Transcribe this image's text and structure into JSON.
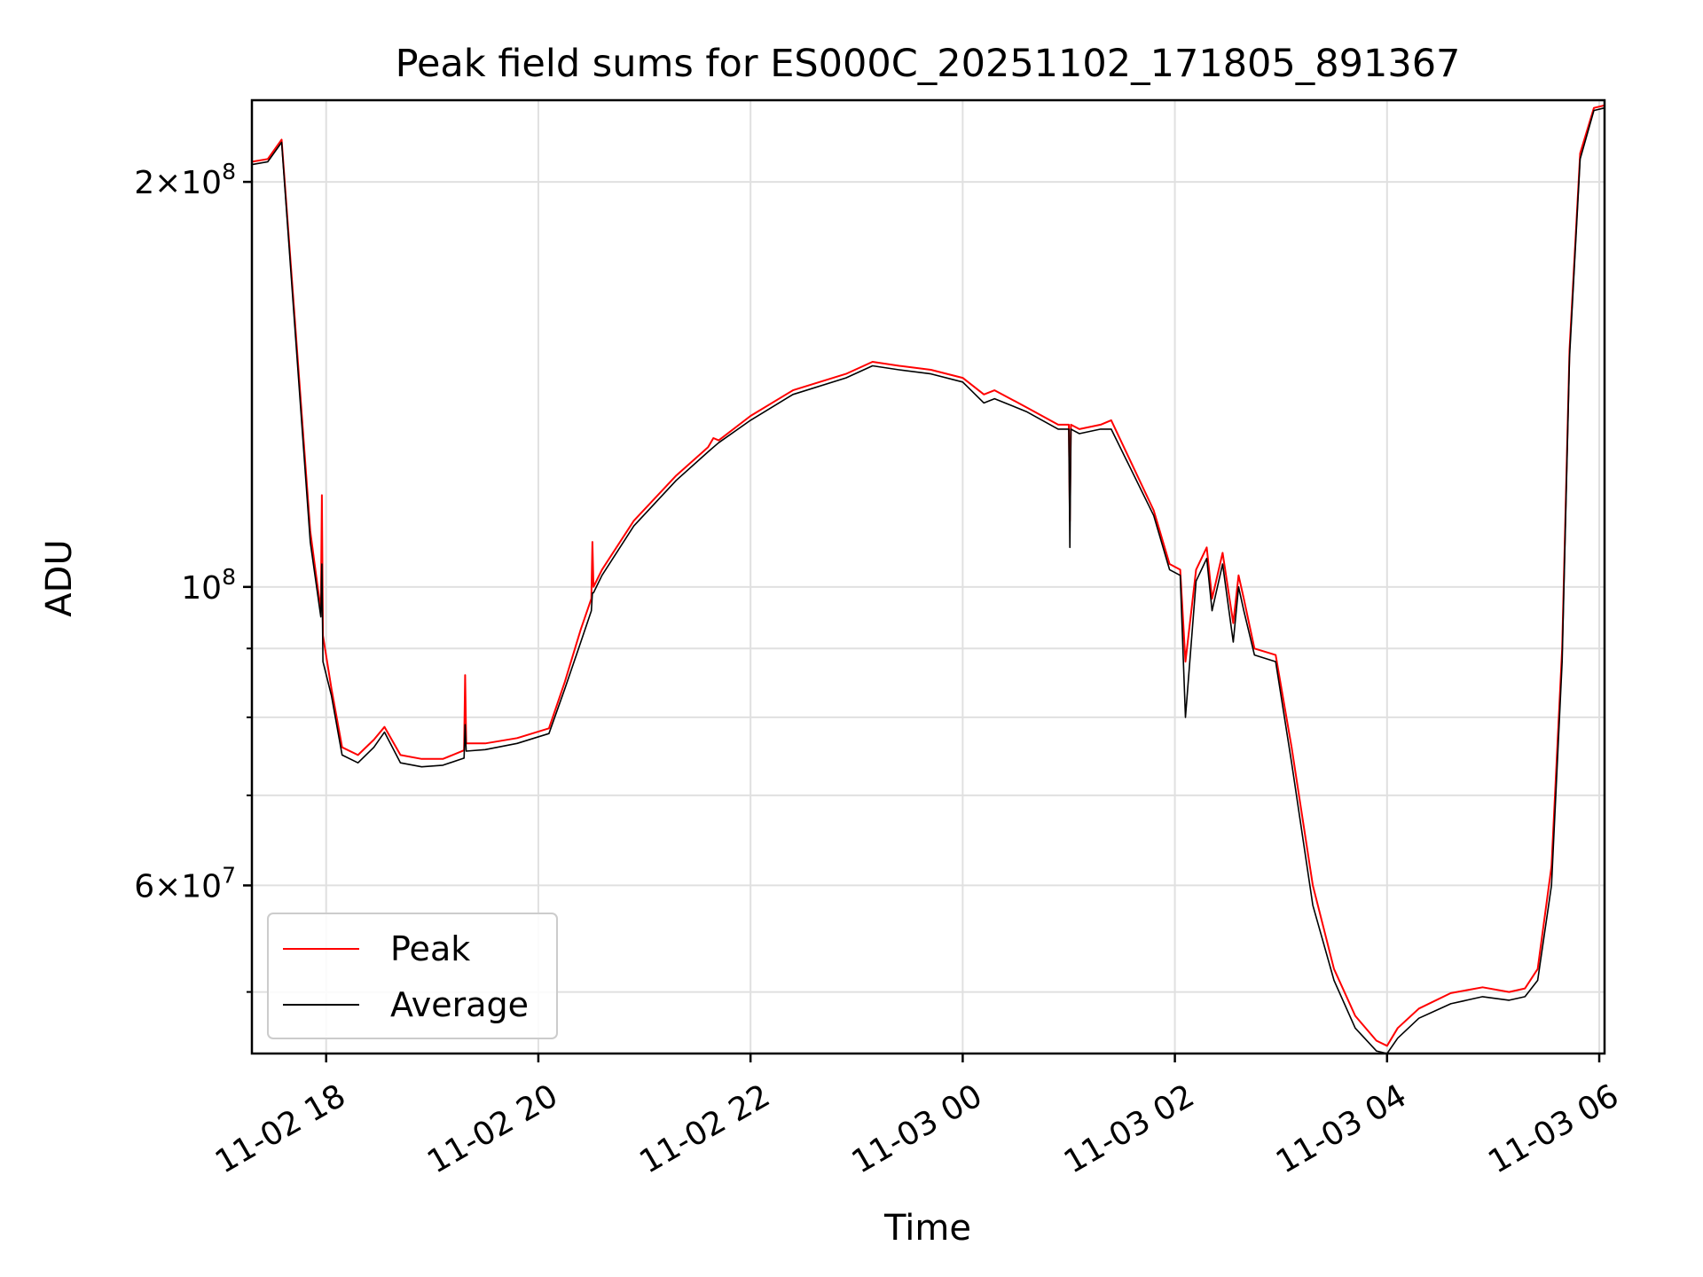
{
  "chart_data": {
    "type": "line",
    "title": "Peak field sums for ES000C_20251102_171805_891367",
    "xlabel": "Time",
    "ylabel": "ADU",
    "yscale": "log",
    "grid": true,
    "legend_position": "bottom-left",
    "xlim_hours": [
      17.3,
      30.05
    ],
    "ylim": [
      45000000,
      230000000
    ],
    "x_ticks": [
      {
        "hour": 18,
        "label": "11-02 18"
      },
      {
        "hour": 20,
        "label": "11-02 20"
      },
      {
        "hour": 22,
        "label": "11-02 22"
      },
      {
        "hour": 24,
        "label": "11-03 00"
      },
      {
        "hour": 26,
        "label": "11-03 02"
      },
      {
        "hour": 28,
        "label": "11-03 04"
      },
      {
        "hour": 30,
        "label": "11-03 06"
      }
    ],
    "y_major_ticks": [
      {
        "value": 200000000,
        "mant": "2",
        "base": "10",
        "exp": "8"
      },
      {
        "value": 100000000,
        "mant": "",
        "base": "10",
        "exp": "8"
      },
      {
        "value": 60000000,
        "mant": "6",
        "base": "10",
        "exp": "7"
      }
    ],
    "y_minor_ticks": [
      50000000,
      70000000,
      80000000,
      90000000
    ],
    "series": [
      {
        "name": "Peak",
        "color": "#ff0000",
        "x": [
          17.3,
          17.45,
          17.58,
          17.7,
          17.85,
          17.95,
          17.96,
          17.97,
          18.05,
          18.15,
          18.3,
          18.45,
          18.55,
          18.7,
          18.9,
          19.1,
          19.3,
          19.31,
          19.32,
          19.5,
          19.8,
          20.1,
          20.25,
          20.4,
          20.5,
          20.51,
          20.52,
          20.6,
          20.9,
          21.3,
          21.6,
          21.65,
          21.7,
          22.0,
          22.4,
          22.9,
          23.15,
          23.4,
          23.7,
          24.0,
          24.2,
          24.3,
          24.6,
          24.9,
          25.0,
          25.01,
          25.02,
          25.1,
          25.3,
          25.4,
          25.8,
          25.95,
          26.05,
          26.1,
          26.2,
          26.3,
          26.35,
          26.45,
          26.55,
          26.6,
          26.65,
          26.75,
          26.95,
          27.1,
          27.3,
          27.5,
          27.7,
          27.9,
          28.0,
          28.1,
          28.3,
          28.6,
          28.9,
          29.15,
          29.3,
          29.42,
          29.55,
          29.65,
          29.72,
          29.82,
          29.95,
          30.05
        ],
        "values": [
          207000000,
          208000000,
          215000000,
          160000000,
          110000000,
          96000000,
          117000000,
          92000000,
          84000000,
          76000000,
          75000000,
          77000000,
          78700000,
          75000000,
          74500000,
          74500000,
          75600000,
          86000000,
          76500000,
          76500000,
          77200000,
          78500000,
          85000000,
          93000000,
          98000000,
          108000000,
          100000000,
          103000000,
          112000000,
          121000000,
          127000000,
          129000000,
          128500000,
          134000000,
          140000000,
          144000000,
          147000000,
          146000000,
          145000000,
          143000000,
          139000000,
          140000000,
          136000000,
          132000000,
          132000000,
          112000000,
          132000000,
          131000000,
          132000000,
          133000000,
          114000000,
          104000000,
          103000000,
          88000000,
          103000000,
          107000000,
          98000000,
          106000000,
          94000000,
          102000000,
          98000000,
          90000000,
          89000000,
          76000000,
          60000000,
          52000000,
          48000000,
          46000000,
          45600000,
          47000000,
          48600000,
          49900000,
          50400000,
          50000000,
          50300000,
          52000000,
          62000000,
          90000000,
          150000000,
          210000000,
          227000000,
          228000000
        ]
      },
      {
        "name": "Average",
        "color": "#000000",
        "x": [
          17.3,
          17.45,
          17.58,
          17.7,
          17.85,
          17.95,
          17.96,
          17.97,
          18.05,
          18.15,
          18.3,
          18.45,
          18.55,
          18.7,
          18.9,
          19.1,
          19.3,
          19.31,
          19.32,
          19.5,
          19.8,
          20.1,
          20.25,
          20.4,
          20.5,
          20.51,
          20.52,
          20.6,
          20.9,
          21.3,
          21.6,
          21.65,
          21.7,
          22.0,
          22.4,
          22.9,
          23.15,
          23.4,
          23.7,
          24.0,
          24.2,
          24.3,
          24.6,
          24.9,
          25.0,
          25.01,
          25.02,
          25.1,
          25.3,
          25.4,
          25.8,
          25.95,
          26.05,
          26.1,
          26.2,
          26.3,
          26.35,
          26.45,
          26.55,
          26.6,
          26.65,
          26.75,
          26.95,
          27.1,
          27.3,
          27.5,
          27.7,
          27.9,
          28.0,
          28.1,
          28.3,
          28.6,
          28.9,
          29.15,
          29.3,
          29.42,
          29.55,
          29.65,
          29.72,
          29.82,
          29.95,
          30.05
        ],
        "values": [
          206000000,
          207000000,
          214000000,
          158000000,
          108000000,
          95000000,
          104000000,
          88000000,
          83000000,
          75000000,
          74000000,
          76000000,
          78000000,
          74000000,
          73500000,
          73700000,
          74600000,
          79000000,
          75500000,
          75700000,
          76500000,
          77800000,
          84000000,
          91000000,
          96000000,
          99000000,
          99000000,
          102000000,
          111000000,
          120000000,
          126000000,
          127000000,
          128000000,
          133000000,
          139000000,
          143000000,
          146000000,
          145000000,
          144000000,
          142000000,
          137000000,
          138000000,
          135000000,
          131000000,
          131000000,
          107000000,
          131000000,
          130000000,
          131000000,
          131000000,
          113000000,
          103000000,
          102000000,
          80000000,
          101000000,
          105000000,
          96000000,
          104000000,
          91000000,
          100000000,
          96000000,
          89000000,
          88000000,
          74000000,
          58000000,
          51000000,
          47000000,
          45200000,
          45000000,
          46200000,
          47800000,
          49000000,
          49600000,
          49300000,
          49600000,
          51000000,
          60000000,
          88000000,
          148000000,
          208000000,
          226000000,
          227000000
        ]
      }
    ]
  }
}
